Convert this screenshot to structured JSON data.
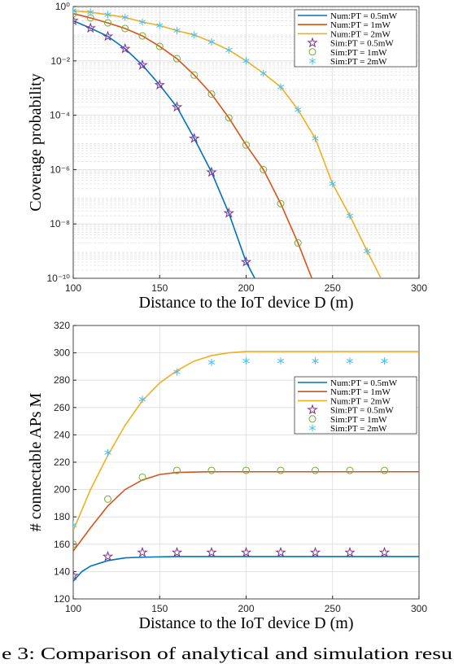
{
  "chart_data": [
    {
      "type": "line",
      "ylabel": "Coverage probability",
      "xlabel": "Distance to the IoT device D (m)",
      "xlim": [
        100,
        300
      ],
      "xticks": [
        100,
        150,
        200,
        250,
        300
      ],
      "log_y": true,
      "grid": true,
      "legend": "upper right",
      "ylim": [
        1e-10,
        1
      ],
      "yticks": [
        {
          "value": 1e-10,
          "label": "10⁻¹⁰"
        },
        {
          "value": 1e-08,
          "label": "10⁻⁸"
        },
        {
          "value": 1e-06,
          "label": "10⁻⁶"
        },
        {
          "value": 0.0001,
          "label": "10⁻⁴"
        },
        {
          "value": 0.01,
          "label": "10⁻²"
        },
        {
          "value": 1,
          "label": "10⁰"
        }
      ],
      "series": [
        {
          "name": "Num:PT = 0.5mW",
          "color": "#0072bd",
          "marker": "line",
          "x": [
            100,
            110,
            120,
            130,
            140,
            150,
            160,
            170,
            180,
            190,
            200,
            205
          ],
          "values": [
            0.3,
            0.16,
            0.08,
            0.028,
            0.007,
            0.0013,
            0.0002,
            1.4e-05,
            8e-07,
            2.5e-08,
            4e-10,
            1e-10
          ]
        },
        {
          "name": "Num:PT = 1mW",
          "color": "#d95319",
          "marker": "line",
          "x": [
            100,
            110,
            120,
            130,
            140,
            150,
            160,
            170,
            180,
            190,
            200,
            210,
            220,
            230,
            238
          ],
          "values": [
            0.55,
            0.38,
            0.25,
            0.155,
            0.083,
            0.034,
            0.012,
            0.003,
            0.0006,
            8e-05,
            8e-06,
            1e-06,
            5.6e-08,
            2e-09,
            1e-10
          ]
        },
        {
          "name": "Num:PT = 2mW",
          "color": "#edb120",
          "marker": "line",
          "x": [
            100,
            110,
            120,
            130,
            140,
            150,
            160,
            170,
            180,
            190,
            200,
            210,
            220,
            230,
            240,
            250,
            260,
            270,
            278
          ],
          "values": [
            0.7,
            0.62,
            0.5,
            0.4,
            0.27,
            0.2,
            0.13,
            0.09,
            0.05,
            0.025,
            0.01,
            0.0035,
            0.0011,
            0.00016,
            1.4e-05,
            3e-07,
            2e-08,
            1e-09,
            1e-10
          ]
        },
        {
          "name": "Sim:PT = 0.5mW",
          "color": "#7e2f8e",
          "marker": "star",
          "x": [
            100,
            110,
            120,
            130,
            140,
            150,
            160,
            170,
            180,
            190,
            200
          ],
          "values": [
            0.3,
            0.16,
            0.08,
            0.028,
            0.007,
            0.0013,
            0.0002,
            1.4e-05,
            8e-07,
            2.5e-08,
            4e-10
          ]
        },
        {
          "name": "Sim:PT = 1mW",
          "color": "#77ac30",
          "marker": "circle",
          "x": [
            100,
            110,
            120,
            130,
            140,
            150,
            160,
            170,
            180,
            190,
            200,
            210,
            220,
            230
          ],
          "values": [
            0.55,
            0.38,
            0.25,
            0.155,
            0.083,
            0.034,
            0.012,
            0.003,
            0.0006,
            8e-05,
            8e-06,
            1e-06,
            5.6e-08,
            2e-09
          ]
        },
        {
          "name": "Sim:PT = 2mW",
          "color": "#4dbeee",
          "marker": "asterisk",
          "x": [
            100,
            110,
            120,
            130,
            140,
            150,
            160,
            170,
            180,
            190,
            200,
            210,
            220,
            230,
            240,
            250,
            260,
            270
          ],
          "values": [
            0.7,
            0.62,
            0.5,
            0.4,
            0.27,
            0.2,
            0.13,
            0.09,
            0.05,
            0.025,
            0.01,
            0.0035,
            0.0011,
            0.00016,
            1.4e-05,
            3e-07,
            2e-08,
            1e-09
          ]
        }
      ]
    },
    {
      "type": "line",
      "ylabel": "# connectable APs M",
      "xlabel": "Distance to the IoT device D (m)",
      "xlim": [
        100,
        300
      ],
      "xticks": [
        100,
        150,
        200,
        250,
        300
      ],
      "log_y": false,
      "grid": true,
      "legend": "center right",
      "ylim": [
        120,
        320
      ],
      "yticks": [
        120,
        140,
        160,
        180,
        200,
        220,
        240,
        260,
        280,
        300,
        320
      ],
      "series": [
        {
          "name": "Num:PT = 0.5mW",
          "color": "#0072bd",
          "marker": "line",
          "x": [
            100,
            105,
            110,
            120,
            130,
            140,
            160,
            300
          ],
          "values": [
            133,
            140,
            144,
            148,
            150,
            150.5,
            151,
            151
          ]
        },
        {
          "name": "Num:PT = 1mW",
          "color": "#d95319",
          "marker": "line",
          "x": [
            100,
            110,
            120,
            130,
            140,
            150,
            160,
            180,
            300
          ],
          "values": [
            155,
            172,
            188,
            200,
            207,
            211,
            212.5,
            213,
            213
          ]
        },
        {
          "name": "Num:PT = 2mW",
          "color": "#edb120",
          "marker": "line",
          "x": [
            100,
            110,
            120,
            130,
            140,
            150,
            160,
            170,
            180,
            190,
            200,
            300
          ],
          "values": [
            170,
            200,
            225,
            247,
            265,
            278,
            287,
            294,
            298,
            300,
            301,
            301
          ]
        },
        {
          "name": "Sim:PT = 0.5mW",
          "color": "#7e2f8e",
          "marker": "star",
          "x": [
            100,
            120,
            140,
            160,
            180,
            200,
            220,
            240,
            260,
            280
          ],
          "values": [
            137,
            151,
            154,
            154,
            154,
            154,
            154,
            154,
            154,
            154
          ]
        },
        {
          "name": "Sim:PT = 1mW",
          "color": "#77ac30",
          "marker": "circle",
          "x": [
            100,
            120,
            140,
            160,
            180,
            200,
            220,
            240,
            260,
            280
          ],
          "values": [
            160,
            193,
            209,
            214,
            214,
            214,
            214,
            214,
            214,
            214
          ]
        },
        {
          "name": "Sim:PT = 2mW",
          "color": "#4dbeee",
          "marker": "asterisk",
          "x": [
            100,
            120,
            140,
            160,
            180,
            200,
            220,
            240,
            260,
            280
          ],
          "values": [
            174,
            227,
            266,
            286,
            293,
            294,
            294,
            294,
            294,
            294
          ]
        }
      ]
    }
  ],
  "caption": "e 3: Comparison of analytical and simulation resu"
}
